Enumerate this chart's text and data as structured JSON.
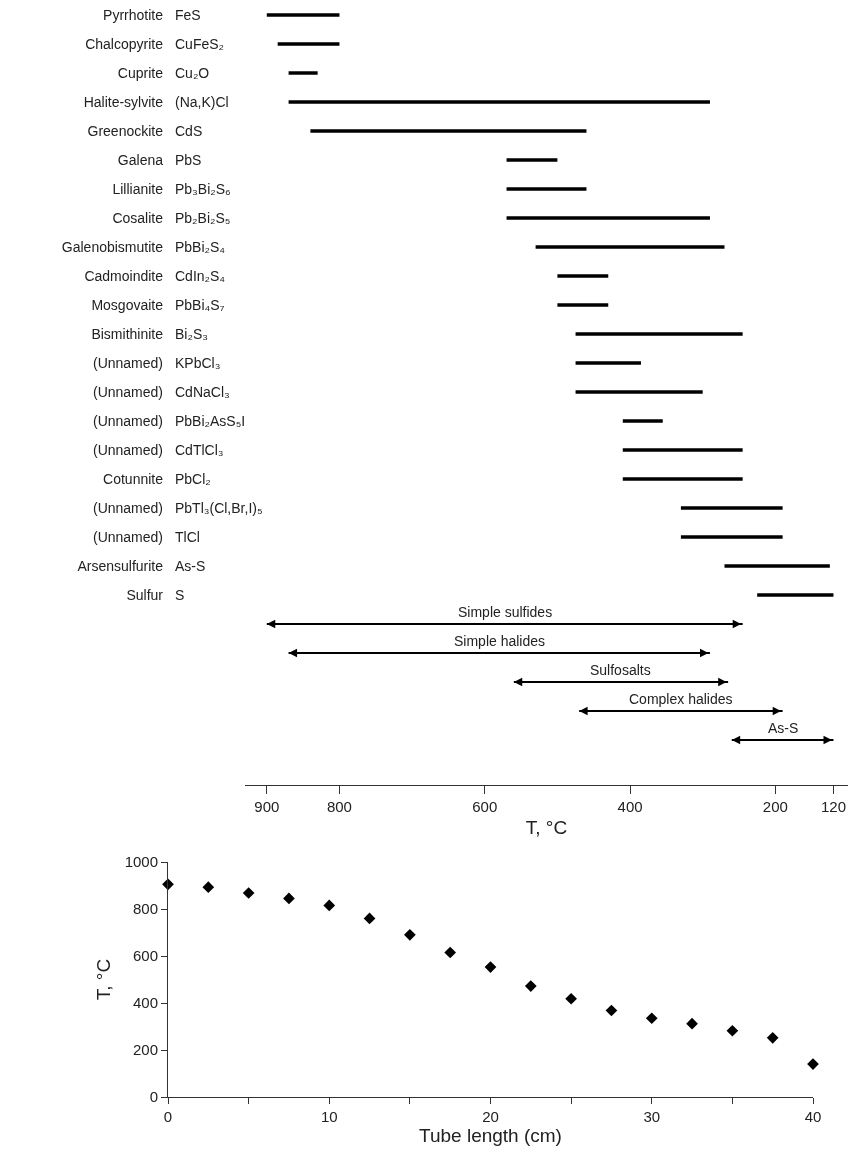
{
  "chart_data": [
    {
      "type": "bar",
      "orientation": "horizontal",
      "categories": [
        "Pyrrhotite",
        "Chalcopyrite",
        "Cuprite",
        "Halite-sylvite",
        "Greenockite",
        "Galena",
        "Lillianite",
        "Cosalite",
        "Galenobismutite",
        "Cadmoindite",
        "Mosgovaite",
        "Bismithinite",
        "(Unnamed)",
        "(Unnamed)",
        "(Unnamed)",
        "(Unnamed)",
        "Cotunnite",
        "(Unnamed)",
        "(Unnamed)",
        "Arsensulfurite",
        "Sulfur",
        null,
        null,
        null,
        null,
        null
      ],
      "y2_categories": [
        "FeS",
        "CuFeS₂",
        "Cu₂O",
        "(Na,K)Cl",
        "CdS",
        "PbS",
        "Pb₃Bi₂S₆",
        "Pb₂Bi₂S₅",
        "PbBi₂S₄",
        "CdIn₂S₄",
        "PbBi₄S₇",
        "Bi₂S₃",
        "KPbCl₃",
        "CdNaCl₃",
        "PbBi₂AsS₅I",
        "CdTlCl₃",
        "PbCl₂",
        "PbTl₃(Cl,Br,I)₅",
        "TlCl",
        "As-S",
        "S",
        null,
        null,
        null,
        null,
        null
      ],
      "series": [
        {
          "color": "#000000",
          "base": [
            800,
            800,
            830,
            290,
            460,
            500,
            460,
            290,
            270,
            430,
            430,
            245,
            385,
            300,
            355,
            245,
            245,
            190,
            190,
            125,
            120,
            null,
            null,
            null,
            null,
            null
          ],
          "values": [
            100,
            85,
            40,
            580,
            380,
            70,
            110,
            280,
            260,
            70,
            70,
            230,
            90,
            175,
            55,
            165,
            165,
            140,
            140,
            145,
            105,
            null,
            null,
            null,
            null,
            null
          ]
        },
        {
          "color": "#000000",
          "marker": "triangle",
          "base": [
            null,
            null,
            null,
            null,
            null,
            null,
            null,
            null,
            null,
            null,
            null,
            null,
            null,
            null,
            null,
            null,
            null,
            null,
            null,
            null,
            null,
            245,
            290,
            265,
            190,
            120
          ],
          "values": [
            null,
            null,
            null,
            null,
            null,
            null,
            null,
            null,
            null,
            null,
            null,
            null,
            null,
            null,
            null,
            null,
            null,
            null,
            null,
            null,
            null,
            655,
            580,
            295,
            280,
            140
          ],
          "value_labels": [
            null,
            null,
            null,
            null,
            null,
            null,
            null,
            null,
            null,
            null,
            null,
            null,
            null,
            null,
            null,
            null,
            null,
            null,
            null,
            null,
            null,
            "Simple sulfides",
            "Simple halides",
            "Sulfosalts",
            "Complex halides",
            "As-S"
          ]
        }
      ],
      "xlabel": "T, °C",
      "xlim": [
        930,
        100
      ],
      "xticks": [
        900,
        800,
        600,
        400,
        200,
        120
      ]
    },
    {
      "type": "scatter",
      "color": "#000000",
      "marker": "diamond",
      "x": [
        0,
        2.5,
        5,
        7.5,
        10,
        12.5,
        15,
        17.5,
        20,
        22.5,
        25,
        27.5,
        30,
        32.5,
        35,
        37.5,
        40
      ],
      "values": [
        905,
        893,
        868,
        845,
        815,
        760,
        690,
        615,
        553,
        472,
        418,
        368,
        335,
        312,
        282,
        252,
        140
      ],
      "xlabel": "Tube length (cm)",
      "ylabel": "T, °C",
      "xlim": [
        0,
        40
      ],
      "ylim": [
        0,
        1000
      ],
      "xticks": [
        0,
        {
          "value": 5,
          "label": null
        },
        10,
        {
          "value": 15,
          "label": null
        },
        20,
        {
          "value": 25,
          "label": null
        },
        30,
        {
          "value": 35,
          "label": null
        },
        40
      ],
      "yticks": [
        0,
        200,
        400,
        600,
        800,
        1000
      ]
    }
  ]
}
